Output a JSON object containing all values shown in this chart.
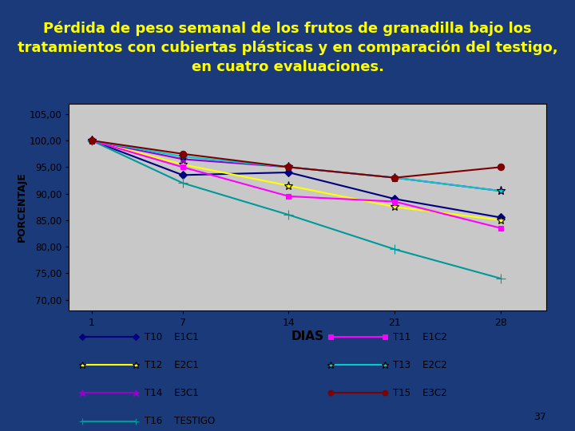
{
  "title_line1": "Pérdida de peso semanal de los frutos de granadilla bajo los",
  "title_line2": "tratamientos con cubiertas plásticas y en comparación del testigo,",
  "title_line3": "en cuatro evaluaciones.",
  "xlabel": "DIAS",
  "ylabel": "PORCENTAJE",
  "xticks": [
    1,
    7,
    14,
    21,
    28
  ],
  "yticks": [
    70,
    75,
    80,
    85,
    90,
    95,
    100,
    105
  ],
  "ytick_labels": [
    "70,00",
    "75,00",
    "80,00",
    "85,00",
    "90,00",
    "95,00",
    "100,00",
    "105,00"
  ],
  "ylim": [
    68,
    107
  ],
  "xlim": [
    -0.5,
    31
  ],
  "bg_slide": "#1a3a7a",
  "chart_area_bg": "#c8c8c8",
  "white_bg": "#ffffff",
  "series": [
    {
      "label_short": "T10",
      "label_long": "E1C1",
      "color": "#000080",
      "marker": "D",
      "markersize": 5,
      "linewidth": 1.5,
      "values": [
        100.0,
        93.5,
        94.0,
        89.0,
        85.5
      ]
    },
    {
      "label_short": "T12",
      "label_long": "E2C1",
      "color": "#ffff00",
      "marker": "*",
      "markersize": 8,
      "linewidth": 1.5,
      "values": [
        100.0,
        95.5,
        91.5,
        87.5,
        85.0
      ]
    },
    {
      "label_short": "T14",
      "label_long": "E3C1",
      "color": "#9900cc",
      "marker": "*",
      "markersize": 8,
      "linewidth": 1.5,
      "values": [
        100.0,
        96.5,
        95.0,
        93.0,
        90.5
      ]
    },
    {
      "label_short": "T16",
      "label_long": "TESTIGO",
      "color": "#009999",
      "marker": "+",
      "markersize": 8,
      "linewidth": 1.5,
      "values": [
        100.0,
        92.0,
        86.0,
        79.5,
        74.0
      ]
    },
    {
      "label_short": "T11",
      "label_long": "E1C2",
      "color": "#ff00ff",
      "marker": "s",
      "markersize": 5,
      "linewidth": 1.5,
      "values": [
        100.0,
        95.0,
        89.5,
        88.5,
        83.5
      ]
    },
    {
      "label_short": "T13",
      "label_long": "E2C2",
      "color": "#00cccc",
      "marker": "*",
      "markersize": 8,
      "linewidth": 1.5,
      "values": [
        100.0,
        97.0,
        95.0,
        93.0,
        90.5
      ]
    },
    {
      "label_short": "T15",
      "label_long": "E3C2",
      "color": "#800000",
      "marker": "o",
      "markersize": 6,
      "linewidth": 1.5,
      "values": [
        100.0,
        97.5,
        95.0,
        93.0,
        95.0
      ]
    }
  ],
  "slide_title_color": "#ffff00",
  "title_fontsize": 13,
  "page_number": "37"
}
